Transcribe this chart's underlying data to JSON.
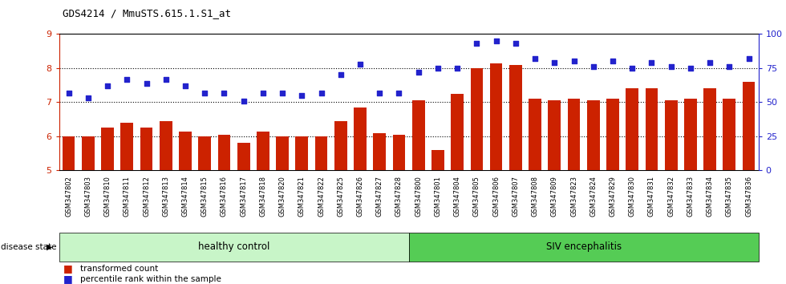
{
  "title": "GDS4214 / MmuSTS.615.1.S1_at",
  "categories": [
    "GSM347802",
    "GSM347803",
    "GSM347810",
    "GSM347811",
    "GSM347812",
    "GSM347813",
    "GSM347814",
    "GSM347815",
    "GSM347816",
    "GSM347817",
    "GSM347818",
    "GSM347820",
    "GSM347821",
    "GSM347822",
    "GSM347825",
    "GSM347826",
    "GSM347827",
    "GSM347828",
    "GSM347800",
    "GSM347801",
    "GSM347804",
    "GSM347805",
    "GSM347806",
    "GSM347807",
    "GSM347808",
    "GSM347809",
    "GSM347823",
    "GSM347824",
    "GSM347829",
    "GSM347830",
    "GSM347831",
    "GSM347832",
    "GSM347833",
    "GSM347834",
    "GSM347835",
    "GSM347836"
  ],
  "bar_values": [
    6.0,
    6.0,
    6.25,
    6.4,
    6.25,
    6.45,
    6.15,
    6.0,
    6.05,
    5.82,
    6.15,
    6.0,
    6.0,
    6.0,
    6.45,
    6.85,
    6.1,
    6.05,
    7.05,
    5.6,
    7.25,
    8.0,
    8.15,
    8.1,
    7.1,
    7.05,
    7.1,
    7.05,
    7.1,
    7.4,
    7.4,
    7.05,
    7.1,
    7.4,
    7.1,
    7.6
  ],
  "dot_values_pct": [
    57,
    53,
    62,
    67,
    64,
    67,
    62,
    57,
    57,
    51,
    57,
    57,
    55,
    57,
    70,
    78,
    57,
    57,
    72,
    75,
    75,
    93,
    95,
    93,
    82,
    79,
    80,
    76,
    80,
    75,
    79,
    76,
    75,
    79,
    76,
    82
  ],
  "healthy_count": 18,
  "siv_count": 18,
  "bar_color": "#cc2200",
  "dot_color": "#2222cc",
  "healthy_color": "#c8f5c8",
  "siv_color": "#55cc55",
  "ylim_left": [
    5,
    9
  ],
  "ylim_right": [
    0,
    100
  ],
  "yticks_left": [
    5,
    6,
    7,
    8,
    9
  ],
  "yticks_right": [
    0,
    25,
    50,
    75,
    100
  ],
  "background_color": "#ffffff",
  "legend_bar_label": "transformed count",
  "legend_dot_label": "percentile rank within the sample",
  "disease_state_label": "disease state",
  "healthy_label": "healthy control",
  "siv_label": "SIV encephalitis",
  "hline_values": [
    6,
    7,
    8
  ]
}
